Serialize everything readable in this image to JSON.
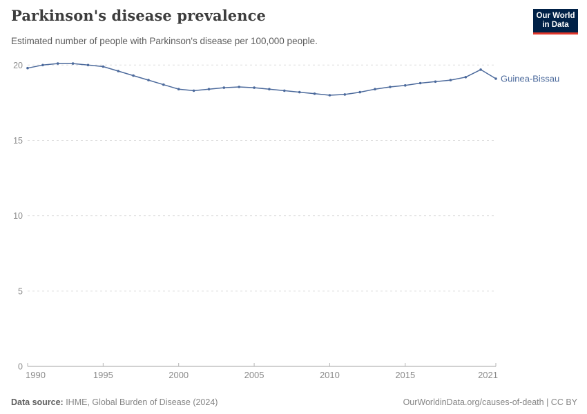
{
  "header": {
    "title": "Parkinson's disease prevalence",
    "subtitle": "Estimated number of people with Parkinson's disease per 100,000 people.",
    "logo": {
      "line1": "Our World",
      "line2": "in Data"
    }
  },
  "footer": {
    "source_label": "Data source:",
    "source_text": " IHME, Global Burden of Disease (2024)",
    "attribution": "OurWorldinData.org/causes-of-death | CC BY"
  },
  "colors": {
    "line": "#4c6a9c",
    "point": "#4c6a9c",
    "entity_label": "#4c6a9c",
    "grid": "#dcdcdc",
    "axis": "#a3a3a3",
    "tick": "#b5b5b5",
    "tick_label": "#8b8b8b",
    "logo_bg": "#002147",
    "logo_accent": "#e0362b"
  },
  "chart_data": {
    "type": "line",
    "title": "Parkinson's disease prevalence",
    "subtitle": "Estimated number of people with Parkinson's disease per 100,000 people.",
    "entity": "Guinea-Bissau",
    "x": [
      1990,
      1991,
      1992,
      1993,
      1994,
      1995,
      1996,
      1997,
      1998,
      1999,
      2000,
      2001,
      2002,
      2003,
      2004,
      2005,
      2006,
      2007,
      2008,
      2009,
      2010,
      2011,
      2012,
      2013,
      2014,
      2015,
      2016,
      2017,
      2018,
      2019,
      2020,
      2021
    ],
    "series": [
      {
        "name": "Guinea-Bissau",
        "values": [
          19.8,
          20.0,
          20.1,
          20.1,
          20.0,
          19.9,
          19.6,
          19.3,
          19.0,
          18.7,
          18.4,
          18.3,
          18.4,
          18.5,
          18.55,
          18.5,
          18.4,
          18.3,
          18.2,
          18.1,
          18.0,
          18.05,
          18.2,
          18.4,
          18.55,
          18.65,
          18.8,
          18.9,
          19.0,
          19.2,
          19.7,
          19.1
        ]
      }
    ],
    "xlabel": "",
    "ylabel": "",
    "xlim": [
      1990,
      2021
    ],
    "ylim": [
      0,
      20
    ],
    "xticks": [
      1990,
      1995,
      2000,
      2005,
      2010,
      2015,
      2021
    ],
    "yticks": [
      0,
      5,
      10,
      15,
      20
    ],
    "grid": "horizontal-dashed",
    "legend": "end-of-line-label",
    "markers": true
  }
}
